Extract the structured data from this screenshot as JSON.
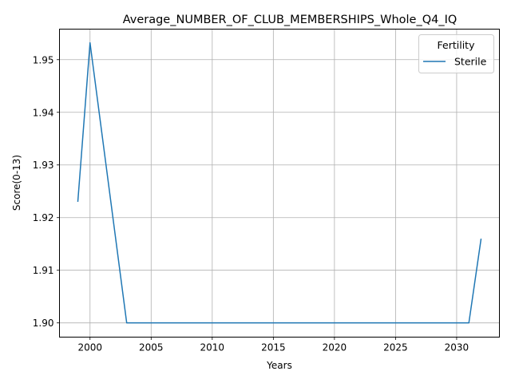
{
  "chart_data": {
    "type": "line",
    "title": "Average_NUMBER_OF_CLUB_MEMBERSHIPS_Whole_Q4_IQ",
    "xlabel": "Years",
    "ylabel": "Score(0-13)",
    "xlim": [
      1997.5,
      2033.5
    ],
    "ylim": [
      1.8973,
      1.9558
    ],
    "xticks": [
      2000,
      2005,
      2010,
      2015,
      2020,
      2025,
      2030
    ],
    "yticks": [
      1.9,
      1.91,
      1.92,
      1.93,
      1.94,
      1.95
    ],
    "ytick_labels": [
      "1.90",
      "1.91",
      "1.92",
      "1.93",
      "1.94",
      "1.95"
    ],
    "grid": true,
    "legend": {
      "title": "Fertility",
      "placement": "top-right"
    },
    "series": [
      {
        "name": "Sterile",
        "color": "#1f77b4",
        "x": [
          1999,
          2000,
          2003,
          2004,
          2005,
          2006,
          2007,
          2008,
          2009,
          2010,
          2011,
          2012,
          2013,
          2014,
          2015,
          2016,
          2017,
          2018,
          2019,
          2020,
          2021,
          2022,
          2023,
          2024,
          2025,
          2026,
          2027,
          2028,
          2029,
          2030,
          2031,
          2032
        ],
        "y": [
          1.923,
          1.9532,
          1.9,
          1.9,
          1.9,
          1.9,
          1.9,
          1.9,
          1.9,
          1.9,
          1.9,
          1.9,
          1.9,
          1.9,
          1.9,
          1.9,
          1.9,
          1.9,
          1.9,
          1.9,
          1.9,
          1.9,
          1.9,
          1.9,
          1.9,
          1.9,
          1.9,
          1.9,
          1.9,
          1.9,
          1.9,
          1.916
        ]
      }
    ]
  }
}
